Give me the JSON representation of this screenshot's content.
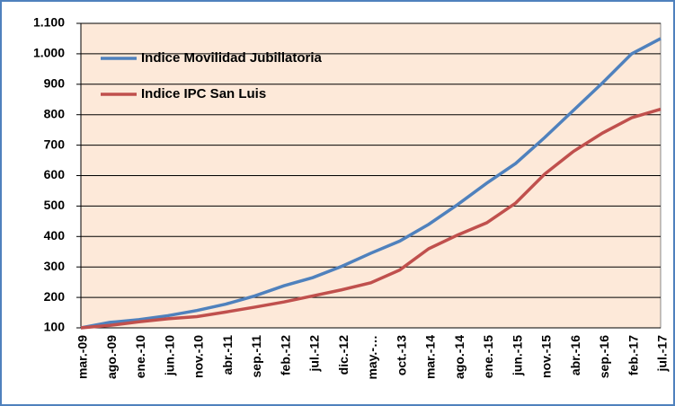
{
  "chart_data": {
    "type": "line",
    "categories": [
      "mar.-09",
      "ago.-09",
      "ene.-10",
      "jun.-10",
      "nov.-10",
      "abr.-11",
      "sep.-11",
      "feb.-12",
      "jul.-12",
      "dic.-12",
      "may.-…",
      "oct.-13",
      "mar.-14",
      "ago.-14",
      "ene.-15",
      "jun.-15",
      "nov.-15",
      "abr.-16",
      "sep.-16",
      "feb.-17",
      "jul.-17"
    ],
    "series": [
      {
        "name": "Indice Movilidad Jubillatoria",
        "color": "#4f81bd",
        "values": [
          100,
          118,
          127,
          140,
          157,
          178,
          205,
          238,
          265,
          302,
          345,
          385,
          440,
          505,
          575,
          640,
          725,
          815,
          905,
          1000,
          1050
        ]
      },
      {
        "name": "Indice IPC San Luis",
        "color": "#c0504d",
        "values": [
          100,
          108,
          120,
          130,
          137,
          152,
          168,
          185,
          205,
          225,
          248,
          290,
          360,
          405,
          445,
          510,
          605,
          680,
          740,
          790,
          818
        ]
      }
    ],
    "ylim": [
      100,
      1100
    ],
    "yticks": [
      100,
      200,
      300,
      400,
      500,
      600,
      700,
      800,
      900,
      {
        "value": 1000,
        "label": "1.000"
      },
      {
        "value": 1100,
        "label": "1.100"
      }
    ],
    "grid": true,
    "legend": "upper left",
    "plot_background": "#fde9d9"
  }
}
